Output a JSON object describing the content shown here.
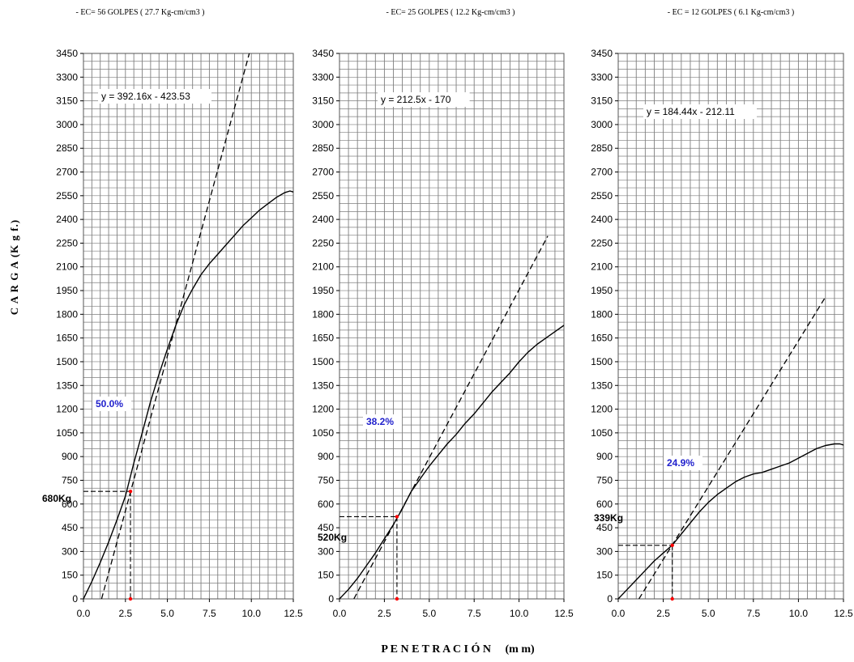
{
  "y_axis_title": "C A R G A   (K g f.)",
  "x_axis_title": "P E N E T R A C I Ó N     (m m)",
  "colors": {
    "grid": "#7f7f7f",
    "curve": "#000000",
    "marker": "#ff0000",
    "percent_label": "#1f1fcc"
  },
  "chart_data": [
    {
      "type": "line",
      "title": "- EC= 56 GOLPES ( 27.7 Kg-cm/cm3 )",
      "xlim": [
        0,
        12.5
      ],
      "ylim": [
        0,
        3450
      ],
      "x_ticks": [
        "0.0",
        "2.5",
        "5.0",
        "7.5",
        "10.0",
        "12.5"
      ],
      "y_ticks": [
        "0",
        "150",
        "300",
        "450",
        "600",
        "750",
        "900",
        "1050",
        "1200",
        "1350",
        "1500",
        "1650",
        "1800",
        "1950",
        "2100",
        "2250",
        "2400",
        "2550",
        "2700",
        "2850",
        "3000",
        "3150",
        "3300",
        "3450"
      ],
      "grid": true,
      "equation_label": "y = 392.16x - 423.53",
      "percent_label": "50.0%",
      "load_label": "680Kg",
      "load_value": 680,
      "penetration_at_load": 2.8,
      "slope": 392.16,
      "intercept": -423.53,
      "tangent_x_range": [
        1.08,
        9.9
      ],
      "curve": {
        "x": [
          0,
          0.5,
          1.0,
          1.5,
          2.0,
          2.5,
          3.0,
          3.5,
          4.0,
          4.5,
          5.0,
          5.5,
          6.0,
          6.5,
          7.0,
          7.5,
          8.0,
          8.5,
          9.0,
          9.5,
          10.0,
          10.5,
          11.0,
          11.5,
          12.0,
          12.3,
          12.6
        ],
        "y": [
          0,
          110,
          230,
          360,
          500,
          650,
          860,
          1050,
          1250,
          1420,
          1580,
          1730,
          1860,
          1960,
          2050,
          2120,
          2180,
          2240,
          2300,
          2360,
          2410,
          2460,
          2500,
          2540,
          2570,
          2580,
          2570
        ]
      }
    },
    {
      "type": "line",
      "title": "- EC= 25 GOLPES ( 12.2 Kg-cm/cm3 )",
      "xlim": [
        0,
        12.5
      ],
      "ylim": [
        0,
        3450
      ],
      "x_ticks": [
        "0.0",
        "2.5",
        "5.0",
        "7.5",
        "10.0",
        "12.5"
      ],
      "y_ticks": [
        "0",
        "150",
        "300",
        "450",
        "600",
        "750",
        "900",
        "1050",
        "1200",
        "1350",
        "1500",
        "1650",
        "1800",
        "1950",
        "2100",
        "2250",
        "2400",
        "2550",
        "2700",
        "2850",
        "3000",
        "3150",
        "3300",
        "3450"
      ],
      "grid": true,
      "equation_label": "y = 212.5x - 170",
      "percent_label": "38.2%",
      "load_label": "520Kg",
      "load_value": 520,
      "penetration_at_load": 3.2,
      "slope": 212.5,
      "intercept": -170,
      "tangent_x_range": [
        0.8,
        11.6
      ],
      "curve": {
        "x": [
          0,
          0.5,
          1.0,
          1.5,
          2.0,
          2.5,
          3.0,
          3.5,
          4.0,
          4.5,
          5.0,
          5.5,
          6.0,
          6.5,
          7.0,
          7.5,
          8.0,
          8.5,
          9.0,
          9.5,
          10.0,
          10.5,
          11.0,
          11.5,
          12.0,
          12.5
        ],
        "y": [
          0,
          60,
          130,
          210,
          290,
          380,
          470,
          570,
          680,
          760,
          840,
          910,
          980,
          1040,
          1110,
          1170,
          1240,
          1310,
          1370,
          1430,
          1500,
          1560,
          1610,
          1650,
          1690,
          1730
        ]
      }
    },
    {
      "type": "line",
      "title": "- EC = 12 GOLPES ( 6.1 Kg-cm/cm3 )",
      "xlim": [
        0,
        12.5
      ],
      "ylim": [
        0,
        3450
      ],
      "x_ticks": [
        "0.0",
        "2.5",
        "5.0",
        "7.5",
        "10.0",
        "12.5"
      ],
      "y_ticks": [
        "0",
        "150",
        "300",
        "450",
        "600",
        "750",
        "900",
        "1050",
        "1200",
        "1350",
        "1500",
        "1650",
        "1800",
        "1950",
        "2100",
        "2250",
        "2400",
        "2550",
        "2700",
        "2850",
        "3000",
        "3150",
        "3300",
        "3450"
      ],
      "grid": true,
      "equation_label": "y = 184.44x - 212.11",
      "percent_label": "24.9%",
      "load_label": "339Kg",
      "load_value": 339,
      "penetration_at_load": 3.0,
      "slope": 184.44,
      "intercept": -212.11,
      "tangent_x_range": [
        1.15,
        11.5
      ],
      "curve": {
        "x": [
          0,
          0.5,
          1.0,
          1.5,
          2.0,
          2.5,
          3.0,
          3.5,
          4.0,
          4.5,
          5.0,
          5.5,
          6.0,
          6.5,
          7.0,
          7.5,
          8.0,
          8.5,
          9.0,
          9.5,
          10.0,
          10.5,
          11.0,
          11.5,
          12.0,
          12.3,
          12.6
        ],
        "y": [
          0,
          60,
          120,
          180,
          240,
          290,
          340,
          410,
          480,
          550,
          610,
          660,
          700,
          740,
          770,
          790,
          800,
          820,
          840,
          860,
          890,
          920,
          950,
          970,
          980,
          980,
          970
        ]
      }
    }
  ]
}
